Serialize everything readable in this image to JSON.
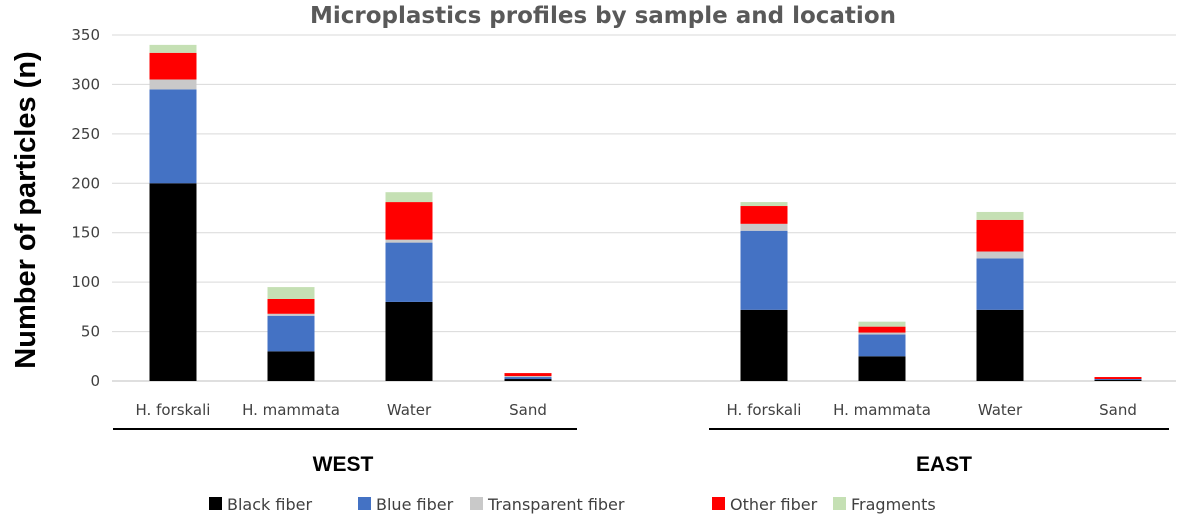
{
  "chart_data": {
    "type": "bar",
    "stacked": true,
    "title": "Microplastics profiles by sample and location",
    "ylabel": "Number of particles  (n)",
    "xlabel": "",
    "ylim": [
      0,
      350
    ],
    "yticks": [
      0,
      50,
      100,
      150,
      200,
      250,
      300,
      350
    ],
    "grid": true,
    "legend_position": "bottom",
    "groups": [
      {
        "label": "WEST",
        "categories": [
          "H. forskali",
          "H. mammata",
          "Water",
          "Sand"
        ],
        "series_values": {
          "Black fiber": [
            200,
            30,
            80,
            2
          ],
          "Blue fiber": [
            95,
            36,
            60,
            2
          ],
          "Transparent fiber": [
            10,
            2,
            3,
            1
          ],
          "Other fiber": [
            27,
            15,
            38,
            3
          ],
          "Fragments": [
            8,
            12,
            10,
            0
          ]
        }
      },
      {
        "label": "EAST",
        "categories": [
          "H. forskali",
          "H. mammata",
          "Water",
          "Sand"
        ],
        "series_values": {
          "Black fiber": [
            72,
            25,
            72,
            1
          ],
          "Blue fiber": [
            80,
            22,
            52,
            1
          ],
          "Transparent fiber": [
            7,
            2,
            7,
            0
          ],
          "Other fiber": [
            18,
            6,
            32,
            2
          ],
          "Fragments": [
            4,
            5,
            8,
            0
          ]
        }
      }
    ],
    "series": [
      {
        "name": "Black fiber",
        "color": "#000000"
      },
      {
        "name": "Blue fiber",
        "color": "#4472c4"
      },
      {
        "name": "Transparent fiber",
        "color": "#c9c9c9"
      },
      {
        "name": "Other fiber",
        "color": "#ff0000"
      },
      {
        "name": "Fragments",
        "color": "#c5e0b4"
      }
    ]
  }
}
